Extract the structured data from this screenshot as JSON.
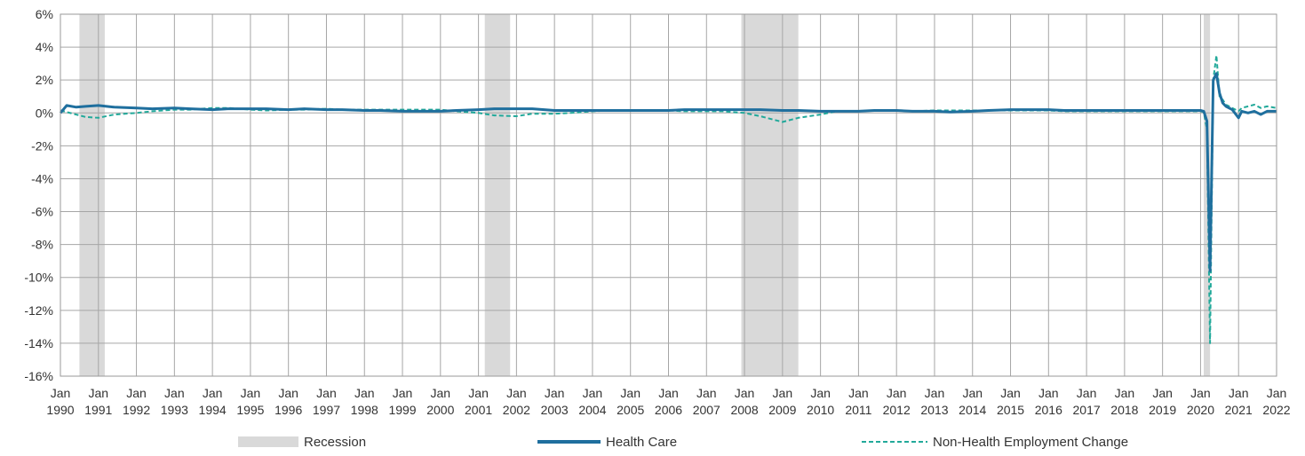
{
  "chart_data": {
    "type": "line",
    "title": "",
    "xlabel": "",
    "ylabel": "",
    "ylim": [
      -16,
      6
    ],
    "yticks": [
      6,
      4,
      2,
      0,
      -2,
      -4,
      -6,
      -8,
      -10,
      -12,
      -14,
      -16
    ],
    "ytick_labels": [
      "6%",
      "4%",
      "2%",
      "0%",
      "-2%",
      "-4%",
      "-6%",
      "-8%",
      "-10%",
      "-12%",
      "-14%",
      "-16%"
    ],
    "xlim": [
      "1990-01",
      "2022-01"
    ],
    "xtick_month": "Jan",
    "xtick_years": [
      "1990",
      "1991",
      "1992",
      "1993",
      "1994",
      "1995",
      "1996",
      "1997",
      "1998",
      "1999",
      "2000",
      "2001",
      "2002",
      "2003",
      "2004",
      "2005",
      "2006",
      "2007",
      "2008",
      "2009",
      "2010",
      "2011",
      "2012",
      "2013",
      "2014",
      "2015",
      "2016",
      "2017",
      "2018",
      "2019",
      "2020",
      "2021",
      "2022"
    ],
    "grid": true,
    "legend_placement": "bottom",
    "recessions": [
      {
        "start": "1990-07",
        "end": "1991-03"
      },
      {
        "start": "2001-03",
        "end": "2001-11"
      },
      {
        "start": "2007-12",
        "end": "2009-06"
      },
      {
        "start": "2020-02",
        "end": "2020-04"
      }
    ],
    "series": [
      {
        "name": "Health Care",
        "style": "solid",
        "color": "#1f6f9e",
        "points": [
          [
            "1990-01",
            0.0
          ],
          [
            "1990-03",
            0.45
          ],
          [
            "1990-06",
            0.35
          ],
          [
            "1990-09",
            0.4
          ],
          [
            "1991-01",
            0.45
          ],
          [
            "1991-06",
            0.35
          ],
          [
            "1992-01",
            0.3
          ],
          [
            "1992-06",
            0.25
          ],
          [
            "1993-01",
            0.3
          ],
          [
            "1993-06",
            0.25
          ],
          [
            "1994-01",
            0.2
          ],
          [
            "1994-06",
            0.25
          ],
          [
            "1995-01",
            0.25
          ],
          [
            "1995-06",
            0.25
          ],
          [
            "1996-01",
            0.2
          ],
          [
            "1996-06",
            0.25
          ],
          [
            "1997-01",
            0.2
          ],
          [
            "1997-06",
            0.2
          ],
          [
            "1998-01",
            0.15
          ],
          [
            "1998-06",
            0.15
          ],
          [
            "1999-01",
            0.1
          ],
          [
            "1999-06",
            0.1
          ],
          [
            "2000-01",
            0.1
          ],
          [
            "2000-06",
            0.15
          ],
          [
            "2001-01",
            0.2
          ],
          [
            "2001-06",
            0.25
          ],
          [
            "2002-01",
            0.25
          ],
          [
            "2002-06",
            0.25
          ],
          [
            "2003-01",
            0.15
          ],
          [
            "2003-06",
            0.15
          ],
          [
            "2004-01",
            0.15
          ],
          [
            "2004-06",
            0.15
          ],
          [
            "2005-01",
            0.15
          ],
          [
            "2005-06",
            0.15
          ],
          [
            "2006-01",
            0.15
          ],
          [
            "2006-06",
            0.2
          ],
          [
            "2007-01",
            0.2
          ],
          [
            "2007-06",
            0.2
          ],
          [
            "2008-01",
            0.2
          ],
          [
            "2008-06",
            0.2
          ],
          [
            "2009-01",
            0.15
          ],
          [
            "2009-06",
            0.15
          ],
          [
            "2010-01",
            0.1
          ],
          [
            "2010-06",
            0.1
          ],
          [
            "2011-01",
            0.1
          ],
          [
            "2011-06",
            0.15
          ],
          [
            "2012-01",
            0.15
          ],
          [
            "2012-06",
            0.1
          ],
          [
            "2013-01",
            0.1
          ],
          [
            "2013-06",
            0.05
          ],
          [
            "2014-01",
            0.1
          ],
          [
            "2014-06",
            0.15
          ],
          [
            "2015-01",
            0.2
          ],
          [
            "2015-06",
            0.2
          ],
          [
            "2016-01",
            0.2
          ],
          [
            "2016-06",
            0.15
          ],
          [
            "2017-01",
            0.15
          ],
          [
            "2017-06",
            0.15
          ],
          [
            "2018-01",
            0.15
          ],
          [
            "2018-06",
            0.15
          ],
          [
            "2019-01",
            0.15
          ],
          [
            "2019-06",
            0.15
          ],
          [
            "2020-01",
            0.15
          ],
          [
            "2020-02",
            0.1
          ],
          [
            "2020-03",
            -0.5
          ],
          [
            "2020-04",
            -9.6
          ],
          [
            "2020-05",
            2.0
          ],
          [
            "2020-06",
            2.4
          ],
          [
            "2020-07",
            1.2
          ],
          [
            "2020-08",
            0.6
          ],
          [
            "2020-09",
            0.4
          ],
          [
            "2020-11",
            0.2
          ],
          [
            "2021-01",
            -0.3
          ],
          [
            "2021-02",
            0.1
          ],
          [
            "2021-04",
            0.0
          ],
          [
            "2021-06",
            0.1
          ],
          [
            "2021-08",
            -0.1
          ],
          [
            "2021-10",
            0.1
          ],
          [
            "2022-01",
            0.1
          ]
        ]
      },
      {
        "name": "Non-Health Employment Change",
        "style": "dashed",
        "color": "#22a99a",
        "points": [
          [
            "1990-01",
            0.15
          ],
          [
            "1990-03",
            0.05
          ],
          [
            "1990-06",
            -0.1
          ],
          [
            "1990-09",
            -0.25
          ],
          [
            "1991-01",
            -0.3
          ],
          [
            "1991-06",
            -0.1
          ],
          [
            "1992-01",
            0.0
          ],
          [
            "1992-06",
            0.1
          ],
          [
            "1993-01",
            0.2
          ],
          [
            "1993-06",
            0.2
          ],
          [
            "1994-01",
            0.3
          ],
          [
            "1994-06",
            0.3
          ],
          [
            "1995-01",
            0.2
          ],
          [
            "1995-06",
            0.15
          ],
          [
            "1996-01",
            0.2
          ],
          [
            "1996-06",
            0.2
          ],
          [
            "1997-01",
            0.25
          ],
          [
            "1997-06",
            0.2
          ],
          [
            "1998-01",
            0.2
          ],
          [
            "1998-06",
            0.2
          ],
          [
            "1999-01",
            0.2
          ],
          [
            "1999-06",
            0.2
          ],
          [
            "2000-01",
            0.2
          ],
          [
            "2000-06",
            0.1
          ],
          [
            "2001-01",
            0.0
          ],
          [
            "2001-06",
            -0.15
          ],
          [
            "2002-01",
            -0.2
          ],
          [
            "2002-06",
            -0.05
          ],
          [
            "2003-01",
            -0.05
          ],
          [
            "2003-06",
            0.0
          ],
          [
            "2004-01",
            0.1
          ],
          [
            "2004-06",
            0.15
          ],
          [
            "2005-01",
            0.15
          ],
          [
            "2005-06",
            0.15
          ],
          [
            "2006-01",
            0.15
          ],
          [
            "2006-06",
            0.1
          ],
          [
            "2007-01",
            0.1
          ],
          [
            "2007-06",
            0.1
          ],
          [
            "2008-01",
            0.0
          ],
          [
            "2008-06",
            -0.2
          ],
          [
            "2009-01",
            -0.55
          ],
          [
            "2009-06",
            -0.3
          ],
          [
            "2010-01",
            -0.1
          ],
          [
            "2010-06",
            0.1
          ],
          [
            "2011-01",
            0.1
          ],
          [
            "2011-06",
            0.15
          ],
          [
            "2012-01",
            0.15
          ],
          [
            "2012-06",
            0.1
          ],
          [
            "2013-01",
            0.15
          ],
          [
            "2013-06",
            0.15
          ],
          [
            "2014-01",
            0.15
          ],
          [
            "2014-06",
            0.15
          ],
          [
            "2015-01",
            0.15
          ],
          [
            "2015-06",
            0.15
          ],
          [
            "2016-01",
            0.15
          ],
          [
            "2016-06",
            0.1
          ],
          [
            "2017-01",
            0.1
          ],
          [
            "2017-06",
            0.1
          ],
          [
            "2018-01",
            0.1
          ],
          [
            "2018-06",
            0.1
          ],
          [
            "2019-01",
            0.1
          ],
          [
            "2019-06",
            0.1
          ],
          [
            "2020-01",
            0.1
          ],
          [
            "2020-02",
            0.05
          ],
          [
            "2020-03",
            -1.0
          ],
          [
            "2020-04",
            -14.0
          ],
          [
            "2020-05",
            2.0
          ],
          [
            "2020-06",
            3.5
          ],
          [
            "2020-07",
            1.0
          ],
          [
            "2020-08",
            0.8
          ],
          [
            "2020-09",
            0.5
          ],
          [
            "2020-11",
            0.3
          ],
          [
            "2021-01",
            0.1
          ],
          [
            "2021-02",
            0.3
          ],
          [
            "2021-04",
            0.4
          ],
          [
            "2021-06",
            0.5
          ],
          [
            "2021-08",
            0.3
          ],
          [
            "2021-10",
            0.4
          ],
          [
            "2022-01",
            0.3
          ]
        ]
      }
    ],
    "legend": [
      {
        "label": "Recession",
        "kind": "bar",
        "color": "#d9d9d9"
      },
      {
        "label": "Health Care",
        "kind": "solid",
        "color": "#1f6f9e"
      },
      {
        "label": "Non-Health Employment Change",
        "kind": "dashed",
        "color": "#22a99a"
      }
    ]
  }
}
